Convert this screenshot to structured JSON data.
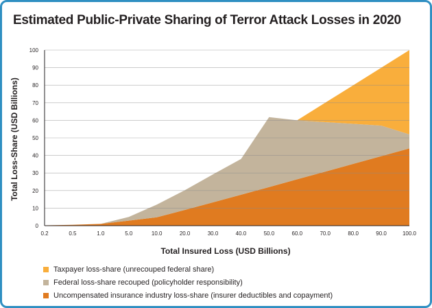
{
  "chart_data": {
    "type": "area",
    "title": "Estimated Public-Private Sharing of Terror Attack Losses in 2020",
    "xlabel": "Total Insured Loss (USD Billions)",
    "ylabel": "Total Loss-Share (USD Billions)",
    "ylim": [
      0,
      100
    ],
    "yticks": [
      0,
      10,
      20,
      30,
      40,
      50,
      60,
      70,
      80,
      90,
      100
    ],
    "x": [
      "0.2",
      "0.5",
      "1.0",
      "5.0",
      "10.0",
      "20.0",
      "30.0",
      "40.0",
      "50.0",
      "60.0",
      "70.0",
      "80.0",
      "90.0",
      "100.0"
    ],
    "stacked": true,
    "series": [
      {
        "name": "Uncompensated insurance industry loss-share (insurer deductibles and copayment)",
        "color": "#e07b20",
        "values": [
          0.2,
          0.5,
          1.0,
          2.9,
          4.8,
          9.0,
          13.3,
          17.6,
          22.0,
          26.4,
          30.8,
          35.2,
          39.6,
          44.0
        ]
      },
      {
        "name": "Federal loss-share recouped (policyholder responsibility)",
        "color": "#c3b49c",
        "values": [
          0.0,
          0.0,
          0.0,
          2.1,
          7.2,
          11.2,
          15.9,
          20.4,
          39.8,
          33.6,
          28.2,
          22.8,
          17.4,
          8.0
        ]
      },
      {
        "name": "Taxpayer loss-share (unrecouped federal share)",
        "color": "#f9ae3c",
        "values": [
          0.0,
          0.0,
          0.0,
          0.0,
          0.0,
          0.0,
          0.0,
          0.0,
          0.0,
          0.0,
          11.0,
          22.0,
          33.0,
          48.0
        ]
      }
    ]
  },
  "legend": [
    {
      "label": "Taxpayer loss-share (unrecouped federal share)",
      "color": "#f9ae3c"
    },
    {
      "label": "Federal loss-share recouped (policyholder responsibility)",
      "color": "#c3b49c"
    },
    {
      "label": "Uncompensated insurance industry loss-share (insurer deductibles and copayment)",
      "color": "#e07b20"
    }
  ]
}
